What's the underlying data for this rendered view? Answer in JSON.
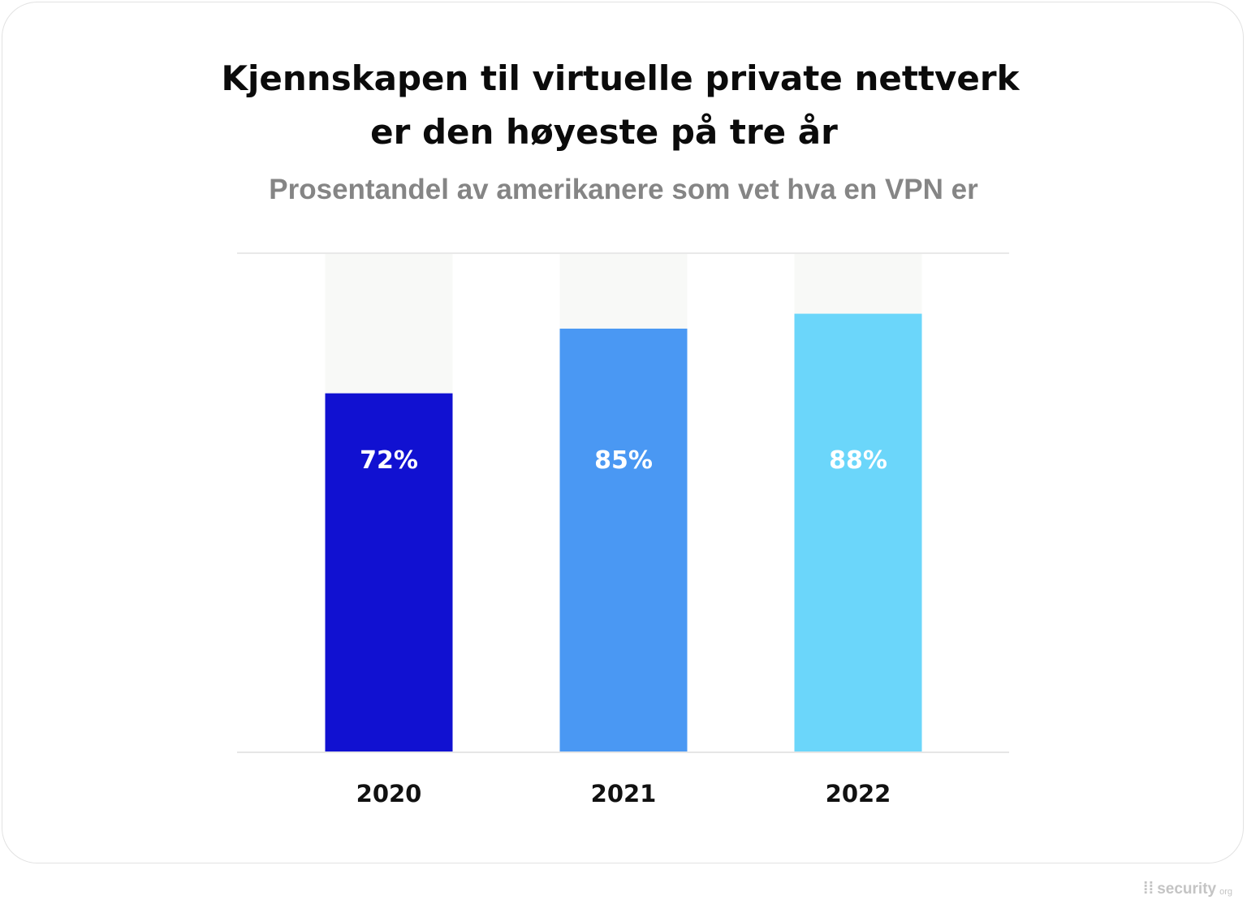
{
  "chart_data": {
    "type": "bar",
    "title_lines": [
      "Kjennskapen til virtuelle private nettverk",
      "er den høyeste på tre år"
    ],
    "subtitle": "Prosentandel av amerikanere som vet hva en VPN er",
    "categories": [
      "2020",
      "2021",
      "2022"
    ],
    "values": [
      72,
      85,
      88
    ],
    "value_labels": [
      "72%",
      "85%",
      "88%"
    ],
    "ylim": [
      0,
      100
    ],
    "colors": [
      "#1111d1",
      "#4a98f3",
      "#6bd6fa"
    ],
    "background_bar_color": "#f8f9f7",
    "label_color": "#ffffff",
    "grid": false
  },
  "brand": {
    "name": "security",
    "suffix": "org",
    "icon": "security-logo-icon"
  }
}
